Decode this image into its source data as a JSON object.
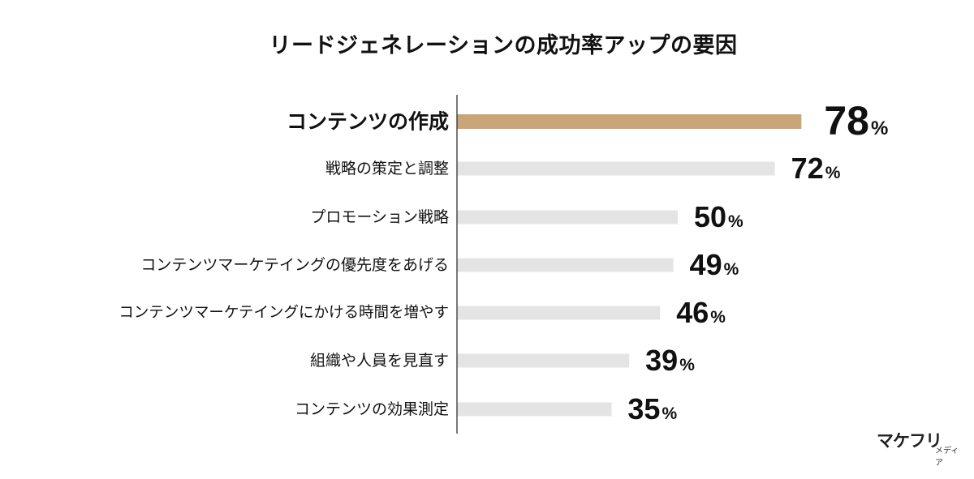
{
  "chart_data": {
    "type": "bar",
    "orientation": "horizontal",
    "title": "リードジェネレーションの成功率アップの要因",
    "categories": [
      "コンテンツの作成",
      "戦略の策定と調整",
      "プロモーション戦略",
      "コンテンツマーケテイングの優先度をあげる",
      "コンテンツマーケテイングにかける時間を増やす",
      "組織や人員を見直す",
      "コンテンツの効果測定"
    ],
    "values": [
      78,
      72,
      50,
      49,
      46,
      39,
      35
    ],
    "value_labels": [
      "78",
      "72",
      "50",
      "49",
      "46",
      "39",
      "35"
    ],
    "unit": "%",
    "highlight_index": 0,
    "colors": {
      "highlight": "#c9a677",
      "bar": "#e4e4e4",
      "axis": "#222222",
      "text": "#111111"
    },
    "grid": false,
    "legend": "none"
  },
  "watermark": {
    "logo": "マケフリ",
    "sub": "メディア"
  }
}
